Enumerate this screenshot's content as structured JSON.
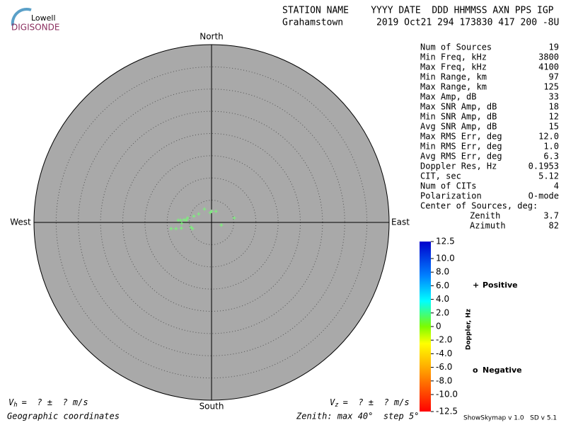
{
  "header": {
    "logo_top": "Lowell",
    "logo_bottom": "DIGISONDE",
    "columns": "STATION NAME    YYYY DATE  DDD HHMMSS AXN PPS IGP",
    "values": "Grahamstown      2019 Oct21 294 173830 417 200 -8U"
  },
  "stats": [
    [
      "Num of Sources",
      "19"
    ],
    [
      "Min Freq, kHz",
      "3800"
    ],
    [
      "Max Freq, kHz",
      "4100"
    ],
    [
      "Min Range, km",
      "97"
    ],
    [
      "Max Range, km",
      "125"
    ],
    [
      "Max Amp, dB",
      "33"
    ],
    [
      "Max SNR Amp, dB",
      "18"
    ],
    [
      "Min SNR Amp, dB",
      "12"
    ],
    [
      "Avg SNR Amp, dB",
      "15"
    ],
    [
      "Max RMS Err, deg",
      "12.0"
    ],
    [
      "Min RMS Err, deg",
      "1.0"
    ],
    [
      "Avg RMS Err, deg",
      "6.3"
    ],
    [
      "Doppler Res, Hz",
      "0.1953"
    ],
    [
      "CIT, sec",
      "5.12"
    ],
    [
      "Num of CITs",
      "4"
    ],
    [
      "Polarization",
      "O-mode"
    ]
  ],
  "center_title": "Center of Sources, deg:",
  "center": [
    [
      "Zenith",
      "3.7"
    ],
    [
      "Azimuth",
      "82"
    ]
  ],
  "velocity_h": {
    "symbol": "V",
    "sub": "h",
    "text": "=  ? ±  ? m/s"
  },
  "velocity_z": {
    "symbol": "V",
    "sub": "z",
    "text": "=  ? ±  ? m/s"
  },
  "coords": "Geographic coordinates",
  "zenith_note": "Zenith: max 40°  step 5°",
  "version": "ShowSkymap v 1.0   SD v 5.1",
  "chart_data": {
    "type": "skymap",
    "directions": {
      "north": "North",
      "south": "South",
      "west": "West",
      "east": "East"
    },
    "rlim": [
      0,
      40
    ],
    "rticks": [
      5,
      10,
      15,
      20,
      25,
      30,
      35,
      40
    ],
    "x": [
      0,
      1.0,
      -1.6,
      -2.9,
      -4.0,
      -5.4,
      -6.2,
      -7.0,
      -7.5,
      -6.7,
      -6.8,
      -8.0,
      -9.1,
      -4.6,
      -4.3,
      2.2,
      5.1,
      -0.3,
      -5.7
    ],
    "series": [
      {
        "color": "#7cf07c",
        "values": [
          2.5,
          2.5,
          3.0,
          1.9,
          1.4,
          1.0,
          0.6,
          0.5,
          0.5,
          -0.2,
          -1.3,
          -1.4,
          -1.4,
          -1.1,
          -1.4,
          -0.6,
          1.0,
          2.2,
          0.5
        ]
      }
    ],
    "colorbar": {
      "label": "Doppler, Hz",
      "lim": [
        -12.5,
        12.5
      ],
      "ticks": [
        12.5,
        {
          "value": 10,
          "label": "10.0"
        },
        {
          "value": 8,
          "label": "8.0"
        },
        {
          "value": 6,
          "label": "6.0"
        },
        {
          "value": 4,
          "label": "4.0"
        },
        {
          "value": 2,
          "label": "2.0"
        },
        0,
        {
          "value": -2,
          "label": "-2.0"
        },
        {
          "value": -4,
          "label": "-4.0"
        },
        {
          "value": -6,
          "label": "-6.0"
        },
        {
          "value": -8,
          "label": "-8.0"
        },
        {
          "value": -10,
          "label": "-10.0"
        },
        -12.5
      ]
    },
    "legend": [
      {
        "symbol": "+",
        "name": "Positive",
        "color": "#0000cc"
      },
      {
        "symbol": "o",
        "name": "Negative",
        "color": "#cc0000"
      }
    ]
  }
}
